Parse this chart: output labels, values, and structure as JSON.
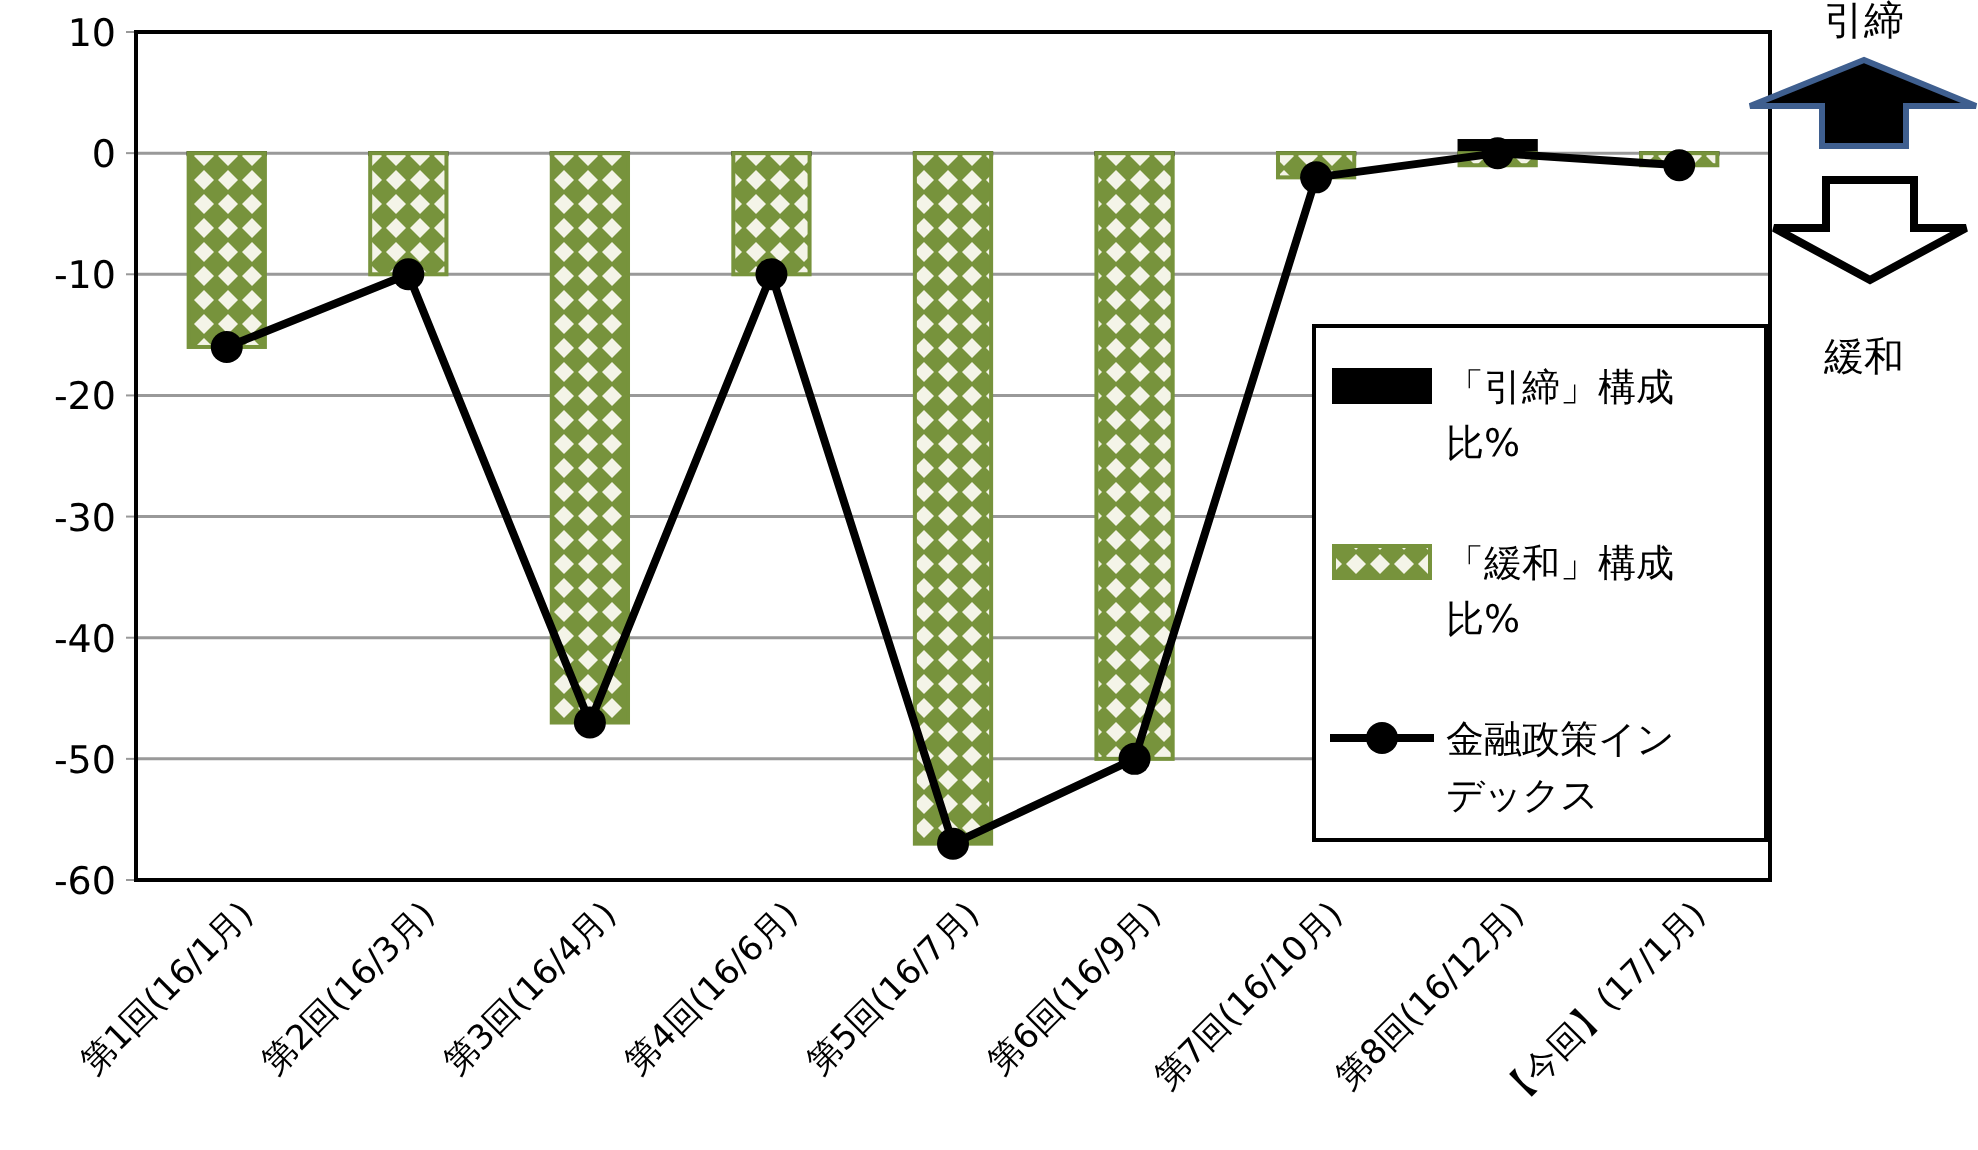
{
  "chart_data": {
    "type": "bar",
    "categories": [
      "第1回(16/1月)",
      "第2回(16/3月)",
      "第3回(16/4月)",
      "第4回(16/6月)",
      "第5回(16/7月)",
      "第6回(16/9月)",
      "第7回(16/10月)",
      "第8回(16/12月)",
      "【今回】(17/1月)"
    ],
    "series": [
      {
        "name": "「引締」構成比%",
        "color": "#000000",
        "values": [
          0,
          0,
          0,
          0,
          0,
          0,
          0,
          1,
          0
        ]
      },
      {
        "name": "「緩和」構成比%",
        "color": "#77933c",
        "values": [
          -16,
          -10,
          -47,
          -10,
          -57,
          -50,
          -2,
          -1,
          -1
        ]
      },
      {
        "name": "金融政策インデックス",
        "type": "line",
        "color": "#000000",
        "marker": "circle",
        "values": [
          -16,
          -10,
          -47,
          -10,
          -57,
          -50,
          -2,
          0,
          -1
        ]
      }
    ],
    "ylim": [
      -60,
      10
    ],
    "yticks": [
      -60,
      -50,
      -40,
      -30,
      -20,
      -10,
      0,
      10
    ],
    "grid": "y",
    "legend": "right",
    "annotations": [
      "引締",
      "緩和"
    ]
  }
}
